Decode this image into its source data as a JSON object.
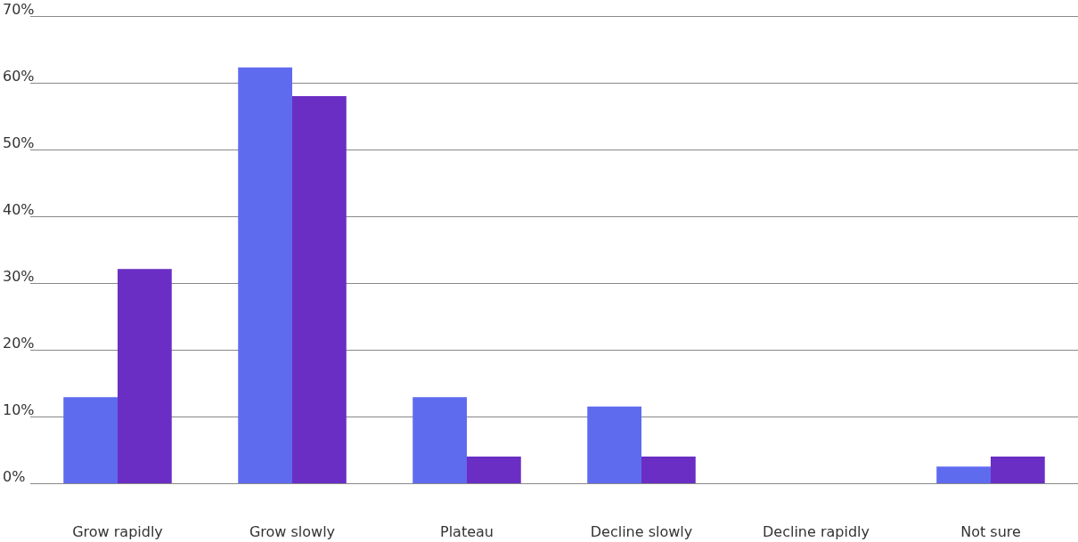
{
  "chart_data": {
    "type": "bar",
    "categories": [
      "Grow rapidly",
      "Grow slowly",
      "Plateau",
      "Decline slowly",
      "Decline rapidly",
      "Not sure"
    ],
    "series": [
      {
        "color": "#5f6bef",
        "values": [
          12.9,
          62.3,
          12.9,
          11.5,
          0,
          2.5
        ]
      },
      {
        "color": "#6a2ec4",
        "values": [
          32.1,
          58,
          4,
          4,
          0,
          4
        ]
      }
    ],
    "ylim": [
      0,
      70
    ],
    "yticks": [
      {
        "value": 0,
        "label": "0%"
      },
      {
        "value": 10,
        "label": "10%"
      },
      {
        "value": 20,
        "label": "20%"
      },
      {
        "value": 30,
        "label": "30%"
      },
      {
        "value": 40,
        "label": "40%"
      },
      {
        "value": 50,
        "label": "50%"
      },
      {
        "value": 60,
        "label": "60%"
      },
      {
        "value": 70,
        "label": "70%"
      }
    ],
    "grid": "y"
  }
}
